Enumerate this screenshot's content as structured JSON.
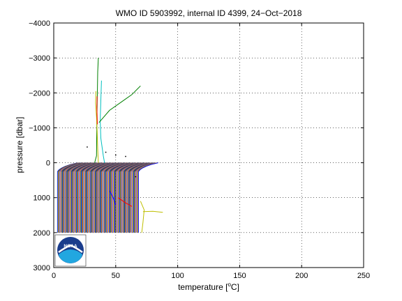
{
  "chart_data": {
    "type": "line",
    "title": "WMO ID 5903992, internal ID 4399, 24−Oct−2018",
    "xlabel": "temperature [°C]",
    "xlabel_parts": {
      "before": "temperature [",
      "sup": "o",
      "after": "C]"
    },
    "ylabel": "pressure [dbar]",
    "xlim": [
      0,
      250
    ],
    "ylim": [
      -4000,
      3000
    ],
    "y_reversed": true,
    "grid": true,
    "x_ticks": [
      "0",
      "50",
      "100",
      "150",
      "200",
      "250"
    ],
    "y_ticks": [
      "−4000",
      "−3000",
      "−2000",
      "−1000",
      "0",
      "1000",
      "2000",
      "3000"
    ],
    "x_tick_values": [
      0,
      50,
      100,
      150,
      200,
      250
    ],
    "y_tick_values": [
      -4000,
      -3000,
      -2000,
      -1000,
      0,
      1000,
      2000,
      3000
    ],
    "profiles": {
      "count": 120,
      "warm_start": 17,
      "step": 0.55,
      "top_pressure": 0,
      "bottom_pressure": 2000,
      "surface_offset": 52
    },
    "colors": [
      "#0000ff",
      "#008000",
      "#ff0000",
      "#00bfbf",
      "#bf00bf",
      "#bfbf00",
      "#404040"
    ],
    "series": [
      {
        "color": "#008000",
        "points": [
          [
            36,
            -3000
          ],
          [
            35.5,
            -2600
          ],
          [
            35.2,
            -2000
          ],
          [
            34.8,
            -1200
          ],
          [
            34.5,
            -200
          ],
          [
            33,
            0
          ]
        ]
      },
      {
        "color": "#00bfbf",
        "points": [
          [
            38.5,
            -2350
          ],
          [
            38,
            -1800
          ],
          [
            37.5,
            -1200
          ],
          [
            38,
            -700
          ],
          [
            40,
            -200
          ],
          [
            41,
            0
          ]
        ]
      },
      {
        "color": "#bfbf00",
        "points": [
          [
            34,
            -2050
          ],
          [
            33.8,
            -1700
          ],
          [
            34.5,
            -1300
          ],
          [
            35,
            -900
          ],
          [
            35.5,
            -400
          ],
          [
            36,
            0
          ]
        ]
      },
      {
        "color": "#008000",
        "points": [
          [
            36.5,
            -1150
          ],
          [
            45,
            -1500
          ],
          [
            55,
            -1750
          ],
          [
            63,
            -1950
          ],
          [
            70,
            -2200
          ]
        ]
      },
      {
        "color": "#ff0000",
        "points": [
          [
            35,
            -1900
          ],
          [
            34.8,
            -1600
          ],
          [
            35.2,
            -1100
          ]
        ]
      },
      {
        "color": "#bfbf00",
        "points": [
          [
            72,
            1400
          ],
          [
            80,
            1390
          ],
          [
            88,
            1420
          ]
        ]
      },
      {
        "color": "#bfbf00",
        "points": [
          [
            70,
            1100
          ],
          [
            73,
            1350
          ],
          [
            72,
            1700
          ],
          [
            71,
            2000
          ]
        ]
      },
      {
        "color": "#ff0000",
        "points": [
          [
            52,
            1000
          ],
          [
            58,
            1150
          ],
          [
            63,
            1250
          ]
        ]
      },
      {
        "color": "#0000ff",
        "points": [
          [
            45,
            800
          ],
          [
            48,
            1000
          ],
          [
            50,
            1200
          ]
        ]
      }
    ],
    "points": [
      [
        27,
        -450
      ],
      [
        58,
        -180
      ],
      [
        42,
        -300
      ],
      [
        50,
        -220
      ],
      [
        66,
        400
      ]
    ]
  },
  "logo": {
    "text": "NOAA"
  }
}
